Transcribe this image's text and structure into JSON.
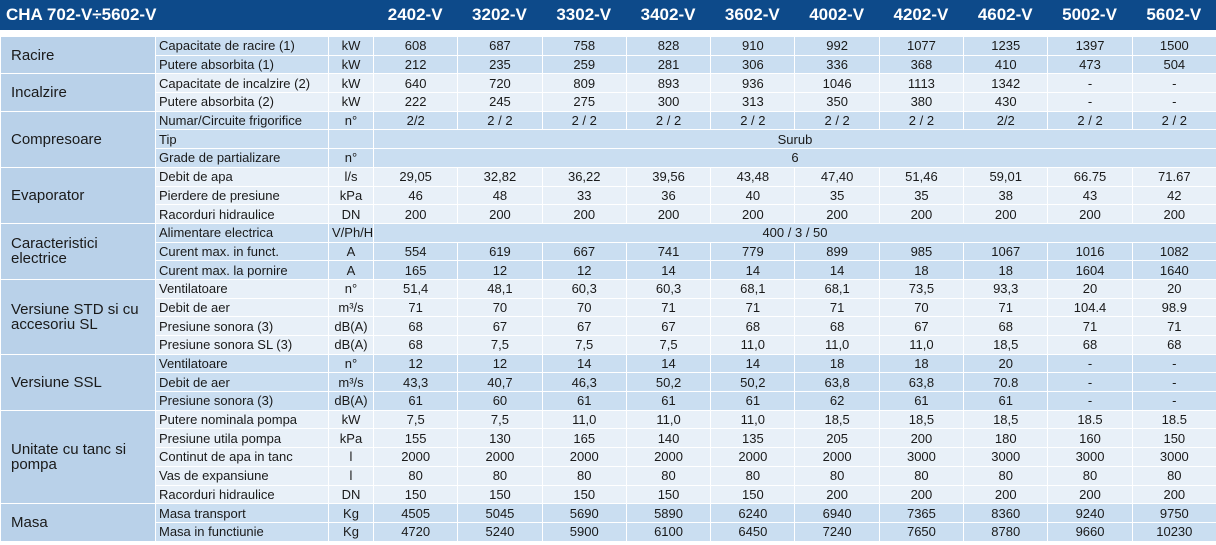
{
  "header": {
    "title": "CHA 702-V÷5602-V",
    "models": [
      "2402-V",
      "3202-V",
      "3302-V",
      "3402-V",
      "3602-V",
      "4002-V",
      "4202-V",
      "4602-V",
      "5002-V",
      "5602-V"
    ]
  },
  "groups": [
    {
      "name": "Racire",
      "rows": [
        {
          "param": "Capacitate de racire (1)",
          "unit": "kW",
          "values": [
            "608",
            "687",
            "758",
            "828",
            "910",
            "992",
            "1077",
            "1235",
            "1397",
            "1500"
          ]
        },
        {
          "param": "Putere absorbita (1)",
          "unit": "kW",
          "values": [
            "212",
            "235",
            "259",
            "281",
            "306",
            "336",
            "368",
            "410",
            "473",
            "504"
          ]
        }
      ]
    },
    {
      "name": "Incalzire",
      "rows": [
        {
          "param": "Capacitate de incalzire (2)",
          "unit": "kW",
          "values": [
            "640",
            "720",
            "809",
            "893",
            "936",
            "1046",
            "1113",
            "1342",
            "-",
            "-"
          ]
        },
        {
          "param": "Putere absorbita (2)",
          "unit": "kW",
          "values": [
            "222",
            "245",
            "275",
            "300",
            "313",
            "350",
            "380",
            "430",
            "-",
            "-"
          ]
        }
      ]
    },
    {
      "name": "Compresoare",
      "rows": [
        {
          "param": "Numar/Circuite frigorifice",
          "unit": "n°",
          "values": [
            "2/2",
            "2 / 2",
            "2 / 2",
            "2 / 2",
            "2 / 2",
            "2 / 2",
            "2 / 2",
            "2/2",
            "2 / 2",
            "2 / 2"
          ]
        },
        {
          "param": "Tip",
          "value": "Surub"
        },
        {
          "param": "Grade de partializare",
          "unit": "n°",
          "value": "6"
        }
      ]
    },
    {
      "name": "Evaporator",
      "rows": [
        {
          "param": "Debit de apa",
          "unit": "l/s",
          "values": [
            "29,05",
            "32,82",
            "36,22",
            "39,56",
            "43,48",
            "47,40",
            "51,46",
            "59,01",
            "66.75",
            "71.67"
          ]
        },
        {
          "param": "Pierdere de presiune",
          "unit": "kPa",
          "values": [
            "46",
            "48",
            "33",
            "36",
            "40",
            "35",
            "35",
            "38",
            "43",
            "42"
          ]
        },
        {
          "param": "Racorduri hidraulice",
          "unit": "DN",
          "values": [
            "200",
            "200",
            "200",
            "200",
            "200",
            "200",
            "200",
            "200",
            "200",
            "200"
          ]
        }
      ]
    },
    {
      "name": "Caracteristici electrice",
      "rows": [
        {
          "param": "Alimentare electrica",
          "unit": "V/Ph/Hz",
          "value": "400 / 3 / 50"
        },
        {
          "param": "Curent max. in funct.",
          "unit": "A",
          "values": [
            "554",
            "619",
            "667",
            "741",
            "779",
            "899",
            "985",
            "1067",
            "1016",
            "1082"
          ]
        },
        {
          "param": "Curent max. la pornire",
          "unit": "A",
          "values": [
            "165",
            "12",
            "12",
            "14",
            "14",
            "14",
            "18",
            "18",
            "1604",
            "1640"
          ]
        }
      ]
    },
    {
      "name": "Versiune STD si cu accesoriu SL",
      "rows": [
        {
          "param": "Ventilatoare",
          "unit": "n°",
          "values": [
            "51,4",
            "48,1",
            "60,3",
            "60,3",
            "68,1",
            "68,1",
            "73,5",
            "93,3",
            "20",
            "20"
          ]
        },
        {
          "param": "Debit de aer",
          "unit": "m³/s",
          "values": [
            "71",
            "70",
            "70",
            "71",
            "71",
            "71",
            "70",
            "71",
            "104.4",
            "98.9"
          ]
        },
        {
          "param": "Presiune sonora (3)",
          "unit": "dB(A)",
          "values": [
            "68",
            "67",
            "67",
            "67",
            "68",
            "68",
            "67",
            "68",
            "71",
            "71"
          ]
        },
        {
          "param": "Presiune sonora SL (3)",
          "unit": "dB(A)",
          "values": [
            "68",
            "7,5",
            "7,5",
            "7,5",
            "11,0",
            "11,0",
            "11,0",
            "18,5",
            "68",
            "68"
          ]
        }
      ]
    },
    {
      "name": "Versiune SSL",
      "rows": [
        {
          "param": "Ventilatoare",
          "unit": "n°",
          "values": [
            "12",
            "12",
            "14",
            "14",
            "14",
            "18",
            "18",
            "20",
            "-",
            "-"
          ]
        },
        {
          "param": "Debit de aer",
          "unit": "m³/s",
          "values": [
            "43,3",
            "40,7",
            "46,3",
            "50,2",
            "50,2",
            "63,8",
            "63,8",
            "70.8",
            "-",
            "-"
          ]
        },
        {
          "param": "Presiune sonora (3)",
          "unit": "dB(A)",
          "values": [
            "61",
            "60",
            "61",
            "61",
            "61",
            "62",
            "61",
            "61",
            "-",
            "-"
          ]
        }
      ]
    },
    {
      "name": "Unitate cu tanc si pompa",
      "rows": [
        {
          "param": "Putere nominala pompa",
          "unit": "kW",
          "values": [
            "7,5",
            "7,5",
            "11,0",
            "11,0",
            "11,0",
            "18,5",
            "18,5",
            "18,5",
            "18.5",
            "18.5"
          ]
        },
        {
          "param": "Presiune utila pompa",
          "unit": "kPa",
          "values": [
            "155",
            "130",
            "165",
            "140",
            "135",
            "205",
            "200",
            "180",
            "160",
            "150"
          ]
        },
        {
          "param": "Continut de apa in tanc",
          "unit": "l",
          "values": [
            "2000",
            "2000",
            "2000",
            "2000",
            "2000",
            "2000",
            "3000",
            "3000",
            "3000",
            "3000"
          ]
        },
        {
          "param": "Vas de expansiune",
          "unit": "l",
          "values": [
            "80",
            "80",
            "80",
            "80",
            "80",
            "80",
            "80",
            "80",
            "80",
            "80"
          ]
        },
        {
          "param": "Racorduri hidraulice",
          "unit": "DN",
          "values": [
            "150",
            "150",
            "150",
            "150",
            "150",
            "200",
            "200",
            "200",
            "200",
            "200"
          ]
        }
      ]
    },
    {
      "name": "Masa",
      "rows": [
        {
          "param": "Masa transport",
          "unit": "Kg",
          "values": [
            "4505",
            "5045",
            "5690",
            "5890",
            "6240",
            "6940",
            "7365",
            "8360",
            "9240",
            "9750"
          ]
        },
        {
          "param": "Masa in functiunie",
          "unit": "Kg",
          "values": [
            "4720",
            "5240",
            "5900",
            "6100",
            "6450",
            "7240",
            "7650",
            "8780",
            "9660",
            "10230"
          ]
        }
      ]
    }
  ]
}
